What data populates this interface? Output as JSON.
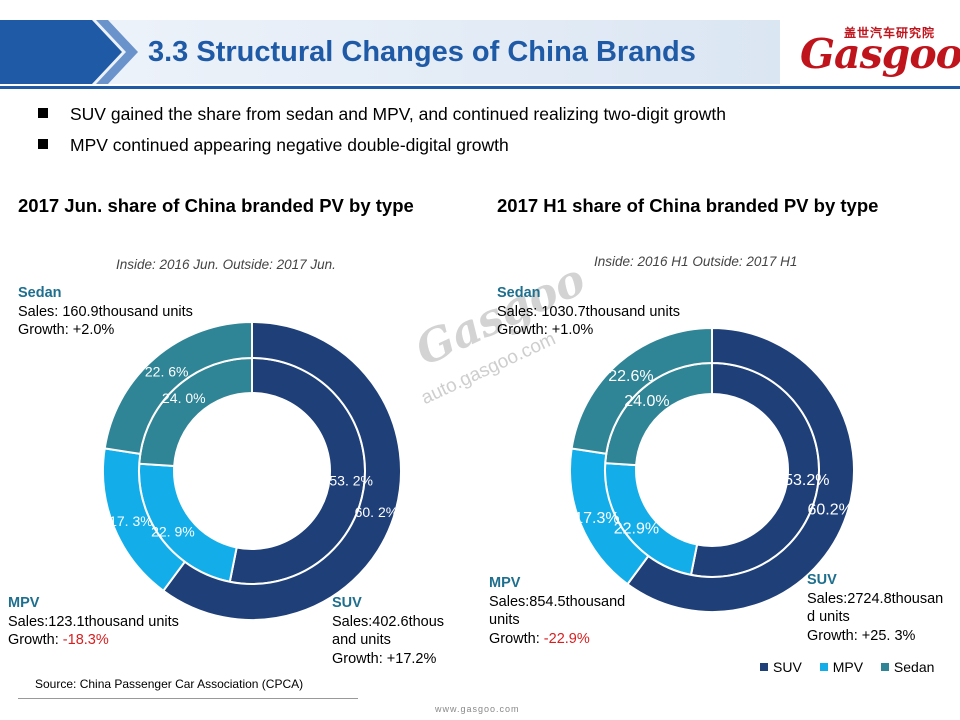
{
  "header": {
    "title": "3.3 Structural Changes of China Brands",
    "brand_cn": "盖世汽车研究院",
    "brand_logo": "Gasgoo"
  },
  "bullets": [
    "SUV gained the share from sedan and MPV, and continued realizing two-digit growth",
    "MPV continued appearing negative double-digital growth"
  ],
  "watermark": {
    "logo": "Gasgoo",
    "url": "auto.gasgoo.com"
  },
  "colors": {
    "SUV": "#1f3f78",
    "MPV": "#13aeea",
    "Sedan": "#2f8596",
    "title": "#1f5aa6",
    "negative": "#d81e1e",
    "callout_label": "#1e6f8e"
  },
  "chart_data": [
    {
      "type": "pie",
      "subtype": "double-doughnut",
      "title": "2017 Jun. share of China branded PV by type",
      "note": "Inside: 2016 Jun.  Outside: 2017 Jun.",
      "categories": [
        "SUV",
        "MPV",
        "Sedan"
      ],
      "series": [
        {
          "name": "2016 Jun.",
          "ring": "inside",
          "values": [
            53.2,
            22.9,
            24.0
          ],
          "labels": [
            "53. 2%",
            "22. 9%",
            "24. 0%"
          ]
        },
        {
          "name": "2017 Jun.",
          "ring": "outside",
          "values": [
            60.2,
            17.3,
            22.6
          ],
          "labels": [
            "60. 2%",
            "17. 3%",
            "22. 6%"
          ]
        }
      ],
      "callouts": {
        "Sedan": {
          "label": "Sedan",
          "sales": "Sales: 160.9thousand units",
          "growth_prefix": "Growth: ",
          "growth_value": "+2.0%",
          "negative": false
        },
        "MPV": {
          "label": "MPV",
          "sales": "Sales:123.1thousand units",
          "growth_prefix": "Growth: ",
          "growth_value": "-18.3%",
          "negative": true
        },
        "SUV": {
          "label": "SUV",
          "sales_lines": [
            "Sales:402.6thous",
            "and units"
          ],
          "growth_prefix": "Growth: ",
          "growth_value": "+17.2%",
          "negative": false
        }
      }
    },
    {
      "type": "pie",
      "subtype": "double-doughnut",
      "title": "2017 H1 share of China branded PV by type",
      "note": "Inside: 2016 H1  Outside: 2017 H1",
      "categories": [
        "SUV",
        "MPV",
        "Sedan"
      ],
      "series": [
        {
          "name": "2016 H1",
          "ring": "inside",
          "values": [
            53.2,
            22.9,
            24.0
          ],
          "labels": [
            "53.2%",
            "22.9%",
            "24.0%"
          ]
        },
        {
          "name": "2017 H1",
          "ring": "outside",
          "values": [
            60.2,
            17.3,
            22.6
          ],
          "labels": [
            "60.2%",
            "17.3%",
            "22.6%"
          ]
        }
      ],
      "callouts": {
        "Sedan": {
          "label": "Sedan",
          "sales": "Sales: 1030.7thousand units",
          "growth_prefix": "Growth: ",
          "growth_value": "+1.0%",
          "negative": false
        },
        "MPV": {
          "label": "MPV",
          "sales_lines": [
            "Sales:854.5thousand",
            "units"
          ],
          "growth_prefix": "Growth: ",
          "growth_value": "-22.9%",
          "negative": true
        },
        "SUV": {
          "label": "SUV",
          "sales_lines": [
            "Sales:2724.8thousan",
            "d units"
          ],
          "growth_prefix": "Growth: ",
          "growth_value": "+25. 3%",
          "negative": false
        }
      },
      "legend": [
        "SUV",
        "MPV",
        "Sedan"
      ],
      "legend_position": "bottom-right"
    }
  ],
  "source": "Source: China Passenger Car Association (CPCA)",
  "footer": "www.gasgoo.com"
}
